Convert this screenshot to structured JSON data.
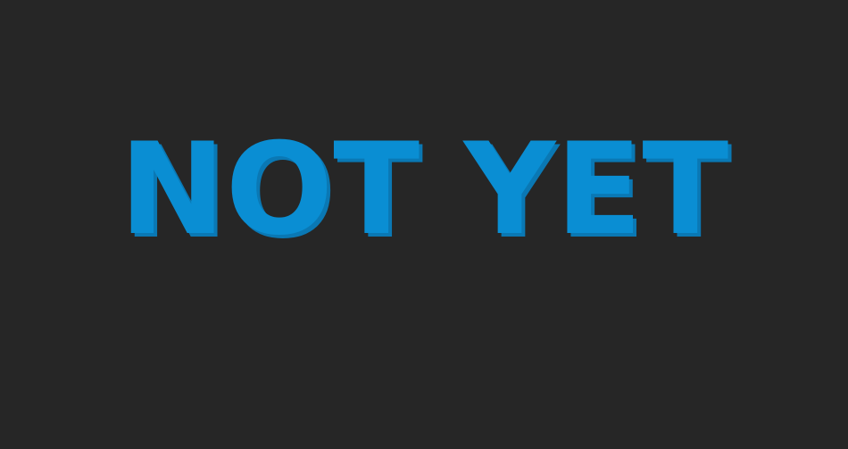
{
  "screen": {
    "headline": "NOT YET",
    "background_color": "#262626",
    "text_color": "#0a8ed3"
  }
}
